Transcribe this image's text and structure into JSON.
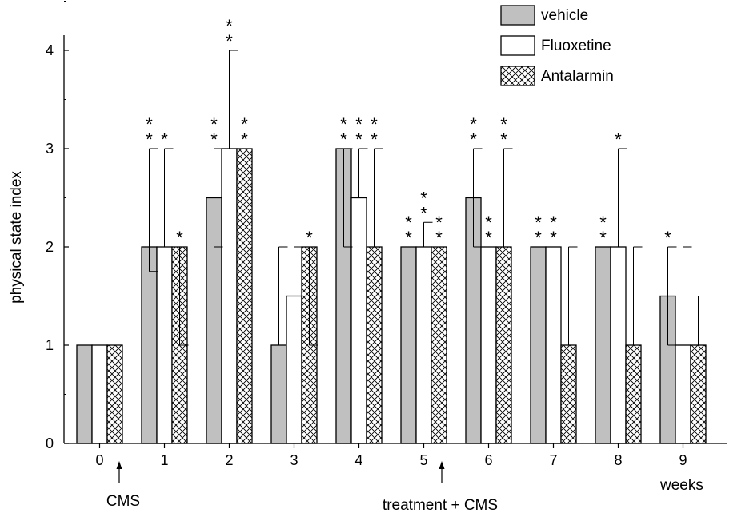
{
  "chart_data": {
    "type": "bar",
    "ylabel": "physical state index",
    "x_unit_label": "weeks",
    "yticks": [
      "0",
      "1",
      "2",
      "3",
      "4"
    ],
    "ylim": [
      0,
      4.25
    ],
    "categories": [
      "0",
      "1",
      "2",
      "3",
      "4",
      "5",
      "6",
      "7",
      "8",
      "9"
    ],
    "series": [
      {
        "name": "vehicle",
        "color": "#c0c0c0",
        "pattern": "solid",
        "values": [
          1,
          2,
          2.5,
          1,
          3,
          2,
          2.5,
          2,
          2,
          1.5
        ],
        "err_upper": [
          null,
          3,
          3,
          2,
          3,
          null,
          3,
          null,
          null,
          2
        ],
        "err_lower": [
          null,
          1.75,
          2,
          null,
          2,
          null,
          2,
          null,
          null,
          1
        ],
        "significance": [
          "",
          "* *",
          "* *",
          "",
          "* *",
          "* *",
          "* *",
          "* *",
          "* *",
          "*"
        ]
      },
      {
        "name": "Fluoxetine",
        "color": "#ffffff",
        "pattern": "open",
        "values": [
          1,
          2,
          3,
          1.5,
          2.5,
          2,
          2,
          2,
          2,
          1
        ],
        "err_upper": [
          null,
          3,
          4,
          2,
          3,
          2.25,
          null,
          null,
          3,
          2
        ],
        "err_lower": [
          null,
          null,
          null,
          null,
          null,
          null,
          null,
          null,
          null,
          null
        ],
        "significance": [
          "",
          "*",
          "* *",
          "",
          "* *",
          "* *",
          "* *",
          "* *",
          "*",
          ""
        ]
      },
      {
        "name": "Antalarmin",
        "color": "#ffffff",
        "pattern": "crosshatch",
        "values": [
          1,
          2,
          3,
          2,
          2,
          2,
          2,
          1,
          1,
          1
        ],
        "err_upper": [
          null,
          null,
          null,
          null,
          3,
          null,
          3,
          2,
          2,
          1.5
        ],
        "err_lower": [
          null,
          1,
          null,
          1,
          null,
          null,
          null,
          null,
          null,
          null
        ],
        "significance": [
          "",
          "*",
          "* *",
          "*",
          "* *",
          "* *",
          "* *",
          "",
          "",
          ""
        ]
      }
    ],
    "annotations": [
      {
        "text": "CMS",
        "between_categories": [
          "0",
          "1"
        ],
        "arrow": "up"
      },
      {
        "text": "treatment + CMS",
        "between_categories": [
          "5",
          "6"
        ],
        "arrow": "up"
      }
    ],
    "legend_position": "top-right",
    "grid": false
  }
}
